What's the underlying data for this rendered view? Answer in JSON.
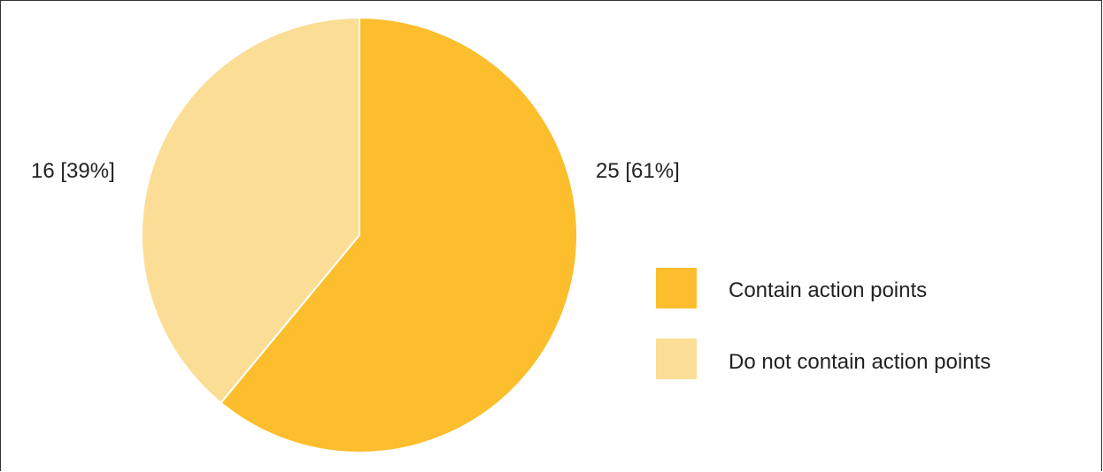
{
  "chart_data": {
    "type": "pie",
    "slices": [
      {
        "name": "Contain action points",
        "value": 25,
        "percent": 61,
        "label": "25 [61%]",
        "color": "#FCBE2C"
      },
      {
        "name": "Do not contain action points",
        "value": 16,
        "percent": 39,
        "label": "16 [39%]",
        "color": "#FBDD95"
      }
    ],
    "legend": {
      "position": "right",
      "items": [
        {
          "label": "Contain action points",
          "color": "#FCBE2C"
        },
        {
          "label": "Do not contain action points",
          "color": "#FBDD95"
        }
      ]
    },
    "start_angle_deg": 0,
    "direction": "clockwise"
  }
}
